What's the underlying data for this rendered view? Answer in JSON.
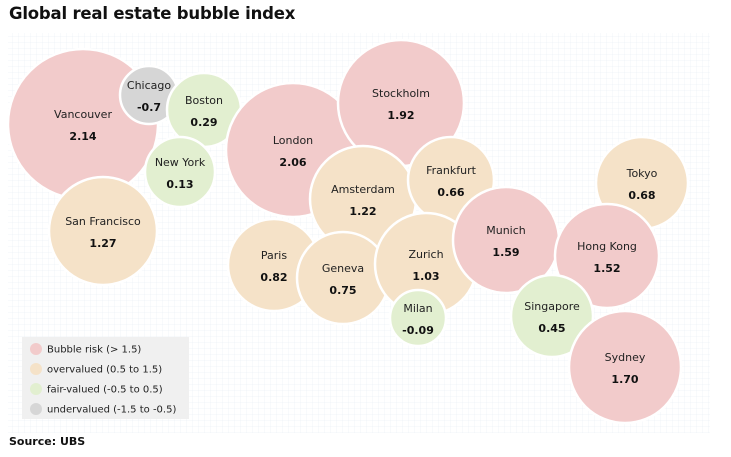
{
  "title": "Global real estate bubble index",
  "source": "Source: UBS",
  "colors": {
    "bubble": "#f2cbcb",
    "overvalued": "#f5e2c8",
    "fair": "#e2efd0",
    "undervalued": "#d6d6d6",
    "grid": "#e6edf3",
    "legend_bg": "#f0f0f0"
  },
  "chart_data": {
    "type": "bubble",
    "title": "Global real estate bubble index",
    "legend": {
      "placement": "bottom-left",
      "items": [
        {
          "label": "Bubble risk (> 1.5)",
          "category": "bubble"
        },
        {
          "label": "overvalued (0.5 to 1.5)",
          "category": "overvalued"
        },
        {
          "label": "fair-valued (-0.5 to 0.5)",
          "category": "fair"
        },
        {
          "label": "undervalued (-1.5 to -0.5)",
          "category": "undervalued"
        }
      ]
    },
    "cities": [
      {
        "name": "Vancouver",
        "label": "2.14",
        "value": 2.14,
        "category": "bubble"
      },
      {
        "name": "Chicago",
        "label": "-0.7",
        "value": -0.7,
        "category": "undervalued"
      },
      {
        "name": "Boston",
        "label": "0.29",
        "value": 0.29,
        "category": "fair"
      },
      {
        "name": "New York",
        "label": "0.13",
        "value": 0.13,
        "category": "fair"
      },
      {
        "name": "San Francisco",
        "label": "1.27",
        "value": 1.27,
        "category": "overvalued"
      },
      {
        "name": "London",
        "label": "2.06",
        "value": 2.06,
        "category": "bubble"
      },
      {
        "name": "Stockholm",
        "label": "1.92",
        "value": 1.92,
        "category": "bubble"
      },
      {
        "name": "Amsterdam",
        "label": "1.22",
        "value": 1.22,
        "category": "overvalued"
      },
      {
        "name": "Frankfurt",
        "label": "0.66",
        "value": 0.66,
        "category": "overvalued"
      },
      {
        "name": "Paris",
        "label": "0.82",
        "value": 0.82,
        "category": "overvalued"
      },
      {
        "name": "Geneva",
        "label": "0.75",
        "value": 0.75,
        "category": "overvalued"
      },
      {
        "name": "Zurich",
        "label": "1.03",
        "value": 1.03,
        "category": "overvalued"
      },
      {
        "name": "Milan",
        "label": "-0.09",
        "value": -0.09,
        "category": "fair"
      },
      {
        "name": "Munich",
        "label": "1.59",
        "value": 1.59,
        "category": "bubble"
      },
      {
        "name": "Tokyo",
        "label": "0.68",
        "value": 0.68,
        "category": "overvalued"
      },
      {
        "name": "Hong Kong",
        "label": "1.52",
        "value": 1.52,
        "category": "bubble"
      },
      {
        "name": "Singapore",
        "label": "0.45",
        "value": 0.45,
        "category": "fair"
      },
      {
        "name": "Sydney",
        "label": "1.70",
        "value": 1.7,
        "category": "bubble"
      }
    ]
  }
}
